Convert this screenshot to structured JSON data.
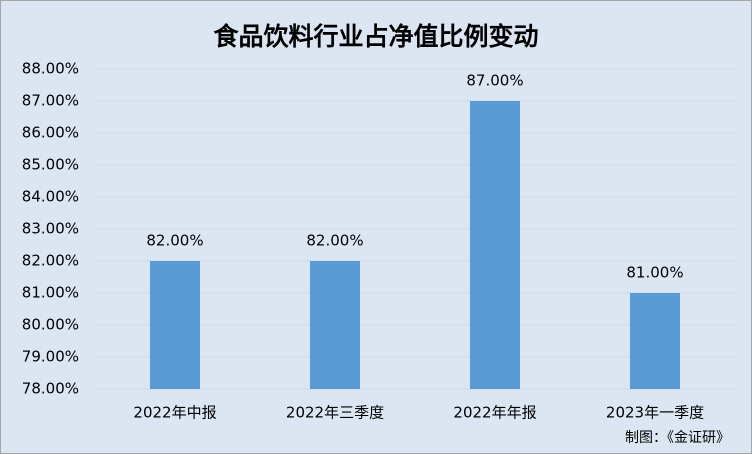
{
  "chart_data": {
    "type": "bar",
    "title": "食品饮料行业占净值比例变动",
    "categories": [
      "2022年中报",
      "2022年三季度",
      "2022年年报",
      "2023年一季度"
    ],
    "values": [
      82,
      82,
      87,
      81
    ],
    "value_labels": [
      "82.00%",
      "82.00%",
      "87.00%",
      "81.00%"
    ],
    "color": "#5b9bd5",
    "ylim": [
      78,
      88
    ],
    "yticks": [
      {
        "value": 78,
        "label": "78.00%"
      },
      {
        "value": 79,
        "label": "79.00%"
      },
      {
        "value": 80,
        "label": "80.00%"
      },
      {
        "value": 81,
        "label": "81.00%"
      },
      {
        "value": 82,
        "label": "82.00%"
      },
      {
        "value": 83,
        "label": "83.00%"
      },
      {
        "value": 84,
        "label": "84.00%"
      },
      {
        "value": 85,
        "label": "85.00%"
      },
      {
        "value": 86,
        "label": "86.00%"
      },
      {
        "value": 87,
        "label": "87.00%"
      },
      {
        "value": 88,
        "label": "88.00%"
      }
    ],
    "grid": true,
    "note": "制图：《金证研》"
  }
}
